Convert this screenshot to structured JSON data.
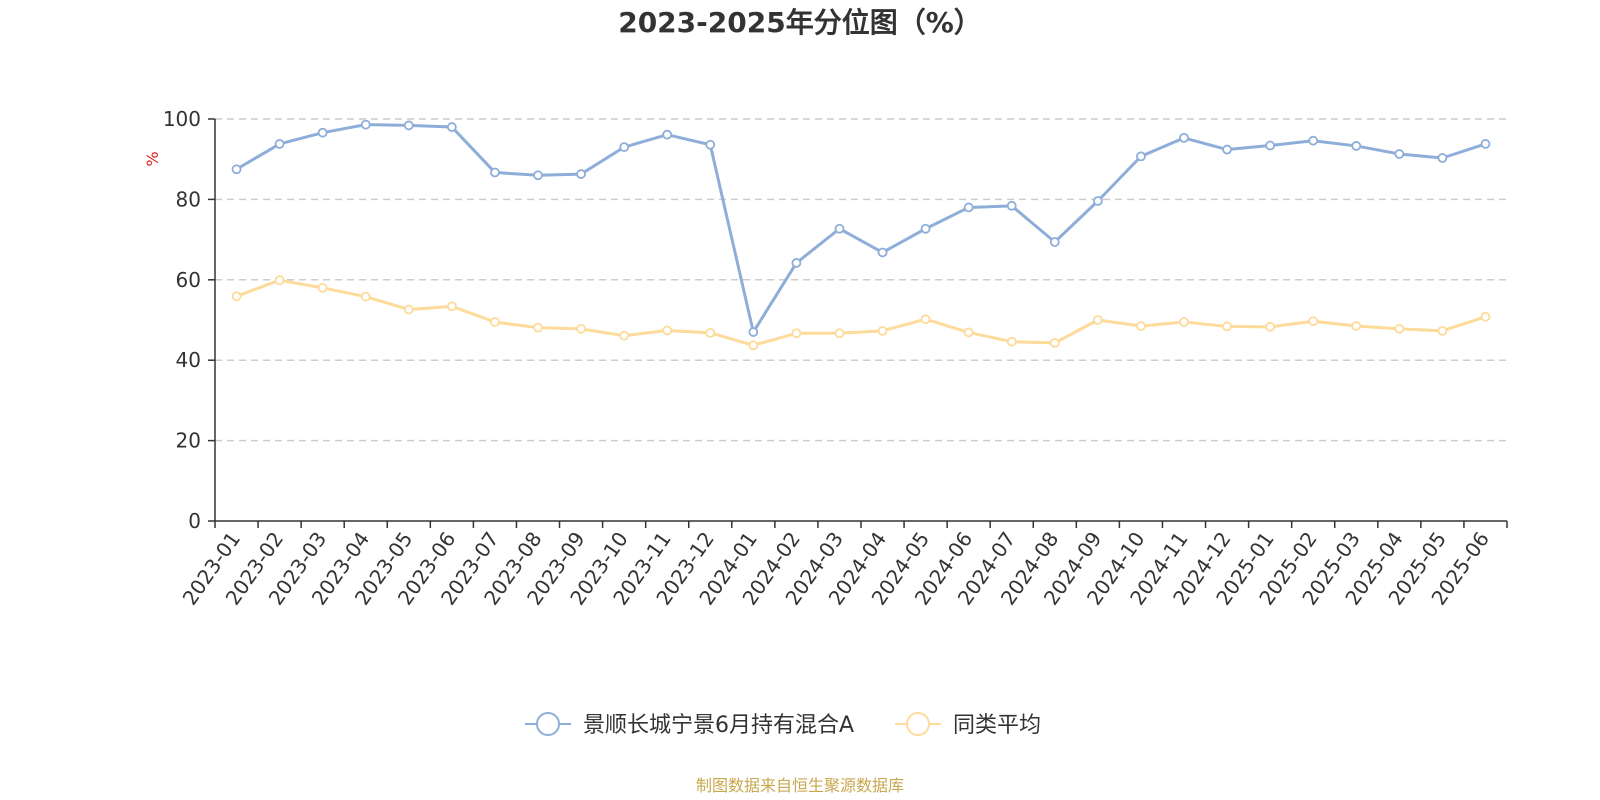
{
  "chart_data": {
    "type": "line",
    "title": "2023-2025年分位图（%）",
    "ylabel": "%",
    "ylim": [
      0,
      100
    ],
    "yticks": [
      0,
      20,
      40,
      60,
      80,
      100
    ],
    "grid": true,
    "legend_position": "bottom-center",
    "x": [
      "2023-01",
      "2023-02",
      "2023-03",
      "2023-04",
      "2023-05",
      "2023-06",
      "2023-07",
      "2023-08",
      "2023-09",
      "2023-10",
      "2023-11",
      "2023-12",
      "2024-01",
      "2024-02",
      "2024-03",
      "2024-04",
      "2024-05",
      "2024-06",
      "2024-07",
      "2024-08",
      "2024-09",
      "2024-10",
      "2024-11",
      "2024-12",
      "2025-01",
      "2025-02",
      "2025-03",
      "2025-04",
      "2025-05",
      "2025-06"
    ],
    "series": [
      {
        "name": "景顺长城宁景6月持有混合A",
        "color": "#8eaed9",
        "values": [
          87.5,
          93.8,
          96.6,
          98.6,
          98.4,
          98.0,
          86.7,
          86.0,
          86.3,
          93.0,
          96.1,
          93.6,
          47.0,
          64.2,
          72.7,
          66.8,
          72.7,
          78.0,
          78.4,
          69.4,
          79.6,
          90.7,
          95.3,
          92.4,
          93.4,
          94.6,
          93.3,
          91.3,
          90.3,
          93.8
        ]
      },
      {
        "name": "同类平均",
        "color": "#fddb9a",
        "values": [
          55.9,
          59.9,
          58.0,
          55.8,
          52.6,
          53.4,
          49.5,
          48.1,
          47.8,
          46.1,
          47.4,
          46.8,
          43.7,
          46.7,
          46.7,
          47.3,
          50.2,
          46.9,
          44.6,
          44.3,
          50.0,
          48.5,
          49.5,
          48.4,
          48.3,
          49.7,
          48.5,
          47.8,
          47.3,
          50.8
        ]
      }
    ]
  },
  "source": {
    "text": "制图数据来自恒生聚源数据库",
    "color": "#c8a84f"
  },
  "colors": {
    "axis": "#333333",
    "grid": "#cccccc",
    "ylabel": "#e02020"
  }
}
